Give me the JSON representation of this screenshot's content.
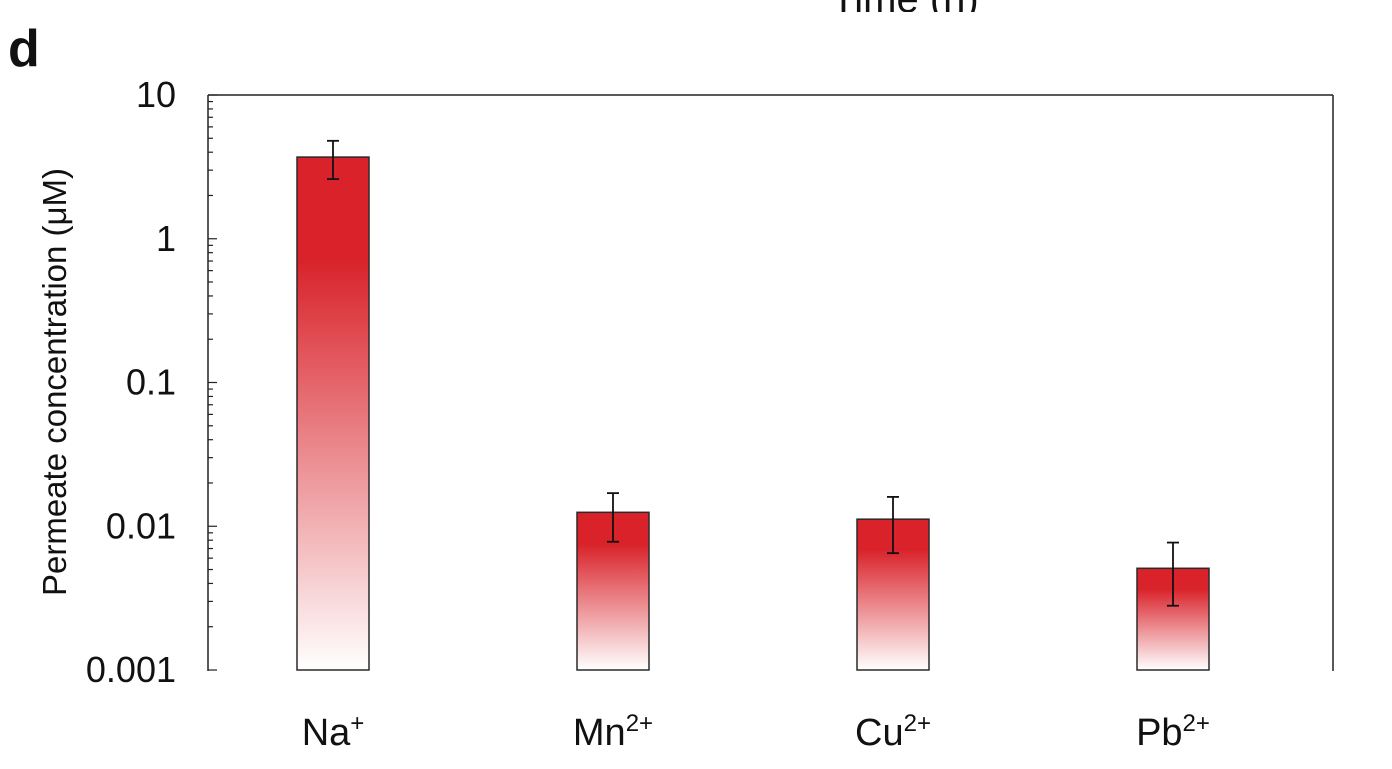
{
  "top_fragment": "Time (h)",
  "panel_label": "d",
  "chart_data": {
    "type": "bar",
    "title": "",
    "xlabel": "",
    "ylabel": "Permeate concentration (μM)",
    "yscale": "log",
    "ylim": [
      0.001,
      10
    ],
    "yticks": [
      0.001,
      0.01,
      0.1,
      1,
      10
    ],
    "ytick_labels": [
      "0.001",
      "0.01",
      "0.1",
      "1",
      "10"
    ],
    "categories": [
      {
        "base": "Na",
        "charge": "+"
      },
      {
        "base": "Mn",
        "charge": "2+"
      },
      {
        "base": "Cu",
        "charge": "2+"
      },
      {
        "base": "Pb",
        "charge": "2+"
      }
    ],
    "values": [
      3.7,
      0.0125,
      0.0112,
      0.0051
    ],
    "error_low": [
      2.6,
      0.0078,
      0.0065,
      0.0028
    ],
    "error_high": [
      4.8,
      0.017,
      0.016,
      0.0077
    ],
    "bar_color_top": "#d9222a",
    "bar_color_bottom": "#ffffff",
    "legend": "none",
    "grid": false
  }
}
